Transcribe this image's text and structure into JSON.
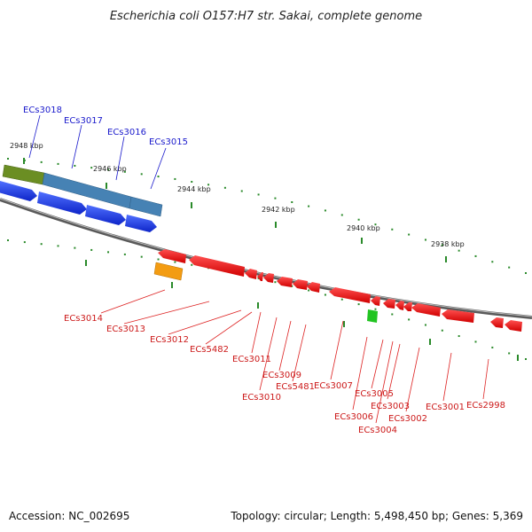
{
  "title": "Escherichia coli O157:H7 str. Sakai, complete genome",
  "footer": {
    "accession": "Accession: NC_002695",
    "topology": "Topology: circular; Length: 5,498,450 bp; Genes: 5,369"
  },
  "colors": {
    "forward_gene": "#1d3ee8",
    "reverse_gene": "#ee1010",
    "backbone": "#888888",
    "tick": "#2a8a2a",
    "olive_feature": "#6b8e23",
    "steelblue_feature": "#4682b4",
    "orange_feature": "#f39c12",
    "green_feature": "#22c422"
  },
  "scale_labels": [
    "2948 kbp",
    "2946 kbp",
    "2944 kbp",
    "2942 kbp",
    "2940 kbp",
    "2938 kbp"
  ],
  "forward_genes": [
    "ECs3018",
    "ECs3017",
    "ECs3016",
    "ECs3015"
  ],
  "reverse_genes": [
    "ECs3014",
    "ECs3013",
    "ECs3012",
    "ECs5482",
    "ECs3011",
    "ECs3010",
    "ECs3009",
    "ECs5481",
    "ECs3007",
    "ECs3006",
    "ECs3005",
    "ECs3004",
    "ECs3003",
    "ECs3002",
    "ECs3001",
    "ECs2998"
  ]
}
